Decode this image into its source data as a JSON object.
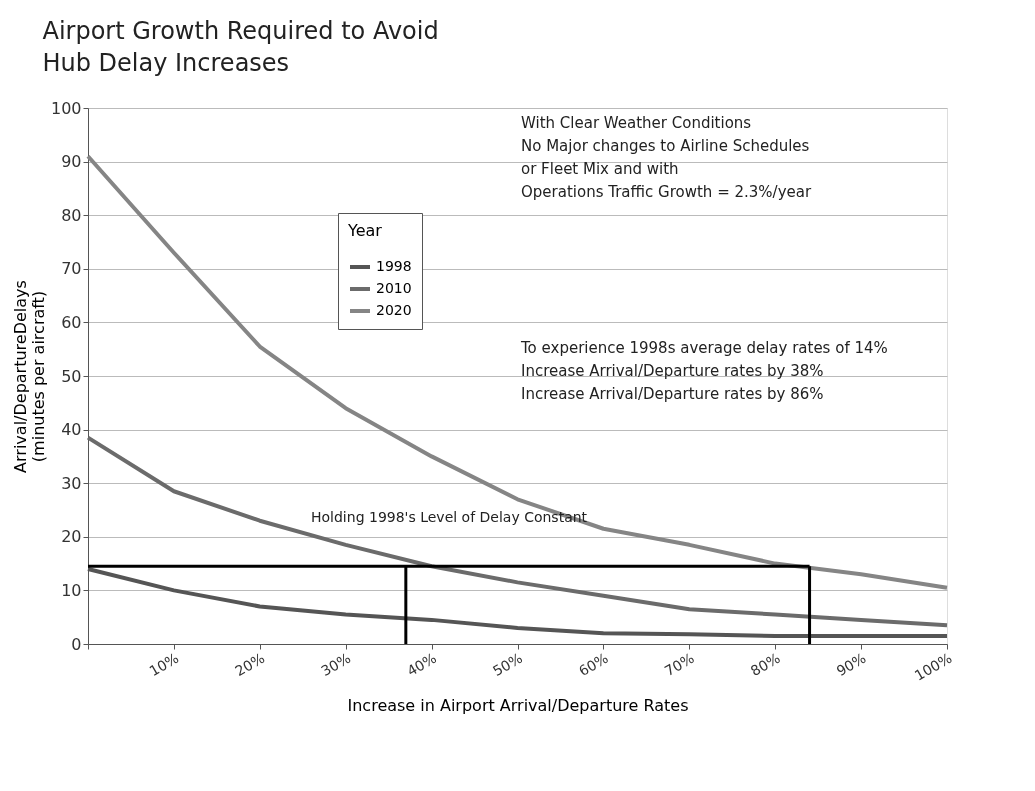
{
  "chart_data": {
    "type": "line",
    "title": "Airport Growth Required to Avoid\nHub Delay Increases",
    "xlabel": "Increase in Airport Arrival/Departure Rates",
    "ylabel": "Arrival/DepartureDelays\n(minutes per aircraft)",
    "legend_title": "Year",
    "x": [
      0,
      10,
      20,
      30,
      40,
      50,
      60,
      70,
      80,
      90,
      100
    ],
    "series": [
      {
        "name": "1998",
        "color": "#555555",
        "values": [
          14,
          10,
          7,
          5.5,
          4.5,
          3,
          2,
          1.8,
          1.5,
          1.5,
          1.5
        ]
      },
      {
        "name": "2010",
        "color": "#6b6b6b",
        "values": [
          38.5,
          28.5,
          23,
          18.5,
          14.5,
          11.5,
          9,
          6.5,
          5.5,
          4.5,
          3.5
        ]
      },
      {
        "name": "2020",
        "color": "#858585",
        "values": [
          91,
          73,
          55.5,
          44,
          35,
          27,
          21.5,
          18.5,
          15,
          13,
          10.5
        ]
      },
      {
        "type": "line",
        "color": "#000000",
        "x": [
          0,
          84
        ],
        "values": [
          14.5,
          14.5
        ]
      },
      {
        "type": "line",
        "color": "#000000",
        "x": [
          37,
          37
        ],
        "values": [
          0,
          14.5
        ]
      },
      {
        "type": "line",
        "color": "#000000",
        "x": [
          84,
          84
        ],
        "values": [
          0,
          14.5
        ]
      }
    ],
    "xlim": [
      0,
      100
    ],
    "xticks": [
      {
        "value": 0,
        "label": null
      },
      {
        "value": 10,
        "label": "10%"
      },
      {
        "value": 20,
        "label": "20%"
      },
      {
        "value": 30,
        "label": "30%"
      },
      {
        "value": 40,
        "label": "40%"
      },
      {
        "value": 50,
        "label": "50%"
      },
      {
        "value": 60,
        "label": "60%"
      },
      {
        "value": 70,
        "label": "70%"
      },
      {
        "value": 80,
        "label": "80%"
      },
      {
        "value": 90,
        "label": "90%"
      },
      {
        "value": 100,
        "label": "100%"
      }
    ],
    "ylim": [
      0,
      100
    ],
    "yticks": [
      0,
      10,
      20,
      30,
      40,
      50,
      60,
      70,
      80,
      90,
      100
    ],
    "grid": "y",
    "legend": "top",
    "annotations": [
      "With Clear Weather Conditions\nNo Major changes to Airline Schedules\nor Fleet Mix and with\nOperations Traffic Growth = 2.3%/year",
      "To experience 1998s average delay rates of 14%\nIncrease Arrival/Departure rates by 38%\nIncrease Arrival/Departure rates by 86%",
      "Holding 1998's Level  of Delay Constant"
    ]
  }
}
